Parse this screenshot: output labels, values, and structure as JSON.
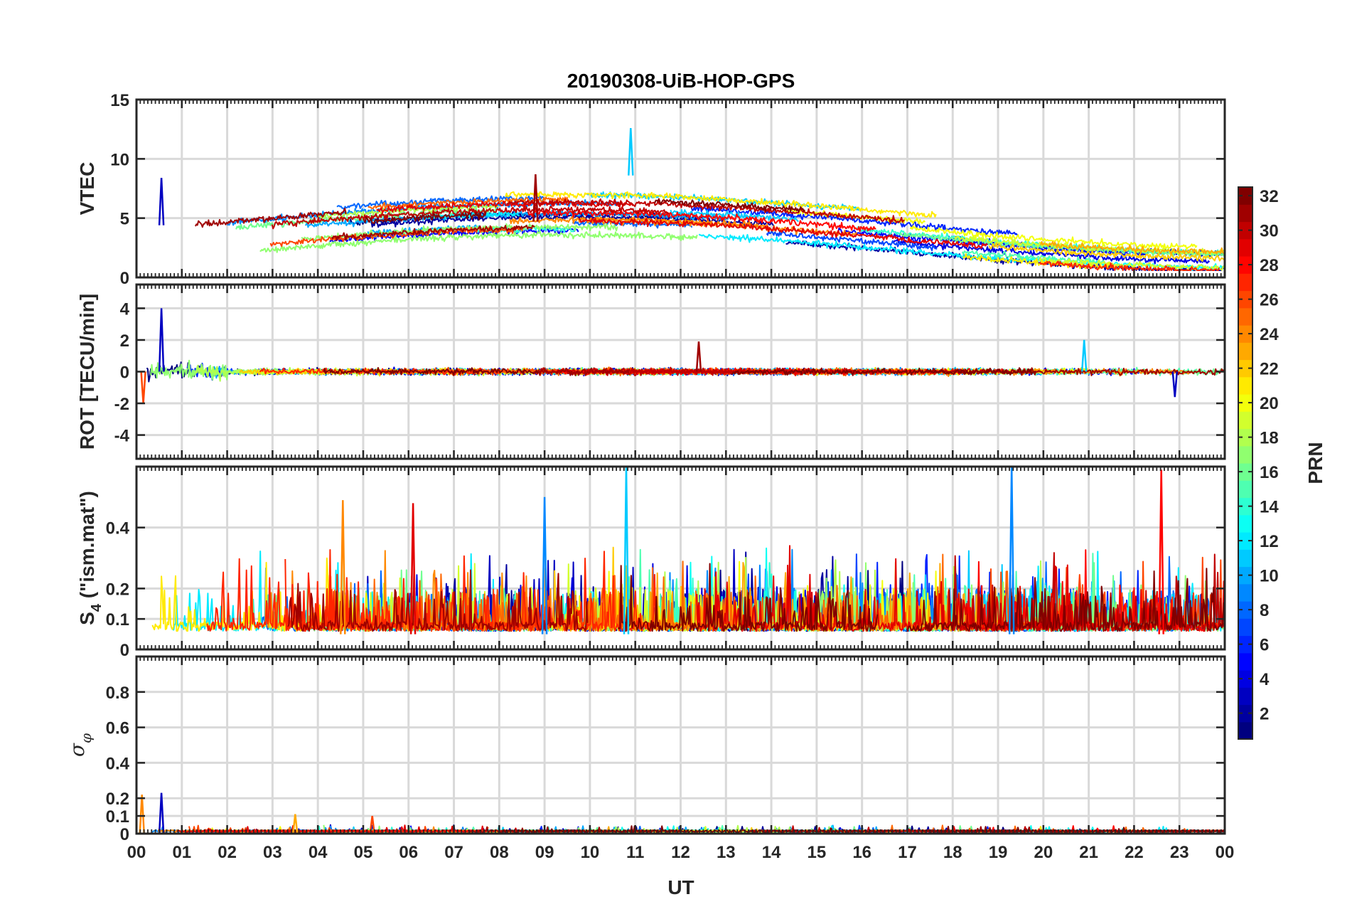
{
  "chart_data": {
    "type": "line",
    "title": "20190308-UiB-HOP-GPS",
    "xlabel": "UT",
    "x_range_hours": [
      0,
      24
    ],
    "x_tick_labels": [
      "00",
      "01",
      "02",
      "03",
      "04",
      "05",
      "06",
      "07",
      "08",
      "09",
      "10",
      "11",
      "12",
      "13",
      "14",
      "15",
      "16",
      "17",
      "18",
      "19",
      "20",
      "21",
      "22",
      "23",
      "00"
    ],
    "grid": true,
    "series_note": "One trace per GPS satellite PRN 1-32, colored by PRN (jet colormap)",
    "panels": [
      {
        "ylabel": "VTEC",
        "ylim": [
          0,
          15
        ],
        "y_ticks": [
          0,
          5,
          10,
          15
        ],
        "y_tick_labels": [
          "0",
          "5",
          "10",
          "15"
        ],
        "typical_range": [
          1,
          7
        ],
        "highlights": [
          {
            "time_h": 0.55,
            "value": 8.4,
            "prn": 3
          },
          {
            "time_h": 10.9,
            "value": 12.6,
            "prn": 11
          },
          {
            "time_h": 8.8,
            "value": 8.7,
            "prn": 31
          }
        ]
      },
      {
        "ylabel": "ROT [TECU/min]",
        "ylim": [
          -5.5,
          5.5
        ],
        "y_ticks": [
          -4,
          -2,
          0,
          2,
          4
        ],
        "y_tick_labels": [
          "-4",
          "-2",
          "0",
          "2",
          "4"
        ],
        "typical_range": [
          -0.6,
          0.6
        ],
        "highlights": [
          {
            "time_h": 0.55,
            "value": 4.0,
            "prn": 3
          },
          {
            "time_h": 0.15,
            "value": -2.0,
            "prn": 26
          },
          {
            "time_h": 12.4,
            "value": 1.9,
            "prn": 31
          },
          {
            "time_h": 20.9,
            "value": 2.0,
            "prn": 11
          },
          {
            "time_h": 22.9,
            "value": -1.6,
            "prn": 3
          }
        ]
      },
      {
        "ylabel": "S4 (\"ism.mat\")",
        "ylabel_main": "S",
        "ylabel_sub": "4",
        "ylabel_tail": " (\"ism.mat\")",
        "ylim": [
          0,
          0.6
        ],
        "y_ticks": [
          0,
          0.1,
          0.2,
          0.4
        ],
        "y_tick_labels": [
          "0",
          "0.1",
          "0.2",
          "0.4"
        ],
        "typical_range": [
          0.05,
          0.3
        ],
        "highlights": [
          {
            "time_h": 10.8,
            "value": 0.6,
            "prn": 11
          },
          {
            "time_h": 19.3,
            "value": 0.6,
            "prn": 9
          },
          {
            "time_h": 22.6,
            "value": 0.59,
            "prn": 28
          },
          {
            "time_h": 4.55,
            "value": 0.49,
            "prn": 24
          },
          {
            "time_h": 6.1,
            "value": 0.48,
            "prn": 29
          },
          {
            "time_h": 9.0,
            "value": 0.5,
            "prn": 9
          }
        ]
      },
      {
        "ylabel": "σφ",
        "ylabel_main": "σ",
        "ylabel_sub": "φ",
        "ylim": [
          0,
          1.0
        ],
        "y_ticks": [
          0,
          0.1,
          0.2,
          0.4,
          0.6,
          0.8
        ],
        "y_tick_labels": [
          "0",
          "0.1",
          "0.2",
          "0.4",
          "0.6",
          "0.8"
        ],
        "typical_range": [
          0,
          0.04
        ],
        "highlights": [
          {
            "time_h": 0.55,
            "value": 0.23,
            "prn": 3
          },
          {
            "time_h": 0.12,
            "value": 0.22,
            "prn": 24
          },
          {
            "time_h": 5.2,
            "value": 0.1,
            "prn": 26
          },
          {
            "time_h": 3.5,
            "value": 0.11,
            "prn": 23
          }
        ]
      }
    ],
    "colorbar": {
      "label": "PRN",
      "range": [
        1,
        32
      ],
      "ticks": [
        2,
        4,
        6,
        8,
        10,
        12,
        14,
        16,
        18,
        20,
        22,
        24,
        26,
        28,
        30,
        32
      ],
      "tick_labels": [
        "2",
        "4",
        "6",
        "8",
        "10",
        "12",
        "14",
        "16",
        "18",
        "20",
        "22",
        "24",
        "26",
        "28",
        "30",
        "32"
      ],
      "colormap": "jet"
    }
  }
}
